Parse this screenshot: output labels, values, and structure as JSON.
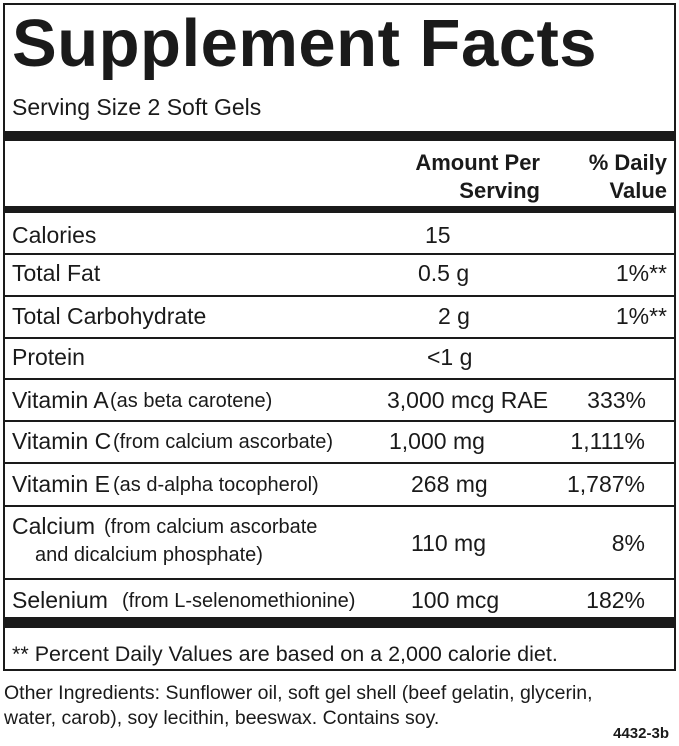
{
  "title": "Supplement Facts",
  "serving_size": "Serving Size 2 Soft Gels",
  "header": {
    "amount": [
      "Amount Per",
      "Serving"
    ],
    "daily_value": [
      "% Daily",
      "Value"
    ]
  },
  "rows": [
    {
      "name": "Calories",
      "amount": "15"
    },
    {
      "name": "Total Fat",
      "amount": "0.5 g",
      "dv": "1%**"
    },
    {
      "name": "Total Carbohydrate",
      "amount": "2 g",
      "dv": "1%**"
    },
    {
      "name": "Protein",
      "amount": "<1 g"
    },
    {
      "name": "Vitamin A",
      "source": "(as beta carotene)",
      "amount": "3,000 mcg RAE",
      "dv": "333%"
    },
    {
      "name": "Vitamin C",
      "source": "(from calcium ascorbate)",
      "amount": "1,000 mg",
      "dv": "1,111%"
    },
    {
      "name": "Vitamin E",
      "source": "(as d-alpha tocopherol)",
      "amount": "268 mg",
      "dv": "1,787%"
    },
    {
      "name": "Calcium",
      "source": "(from calcium ascorbate",
      "source2": "and dicalcium phosphate)",
      "amount": "110 mg",
      "dv": "8%"
    },
    {
      "name": "Selenium",
      "source": "(from L-selenomethionine)",
      "amount": "100 mcg",
      "dv": "182%"
    }
  ],
  "footnote": "** Percent Daily Values are based on a 2,000 calorie diet.",
  "other_ingredients": [
    "Other Ingredients: Sunflower oil, soft gel shell (beef gelatin, glycerin,",
    "water, carob), soy lecithin, beeswax. Contains soy."
  ],
  "code": "4432-3b"
}
